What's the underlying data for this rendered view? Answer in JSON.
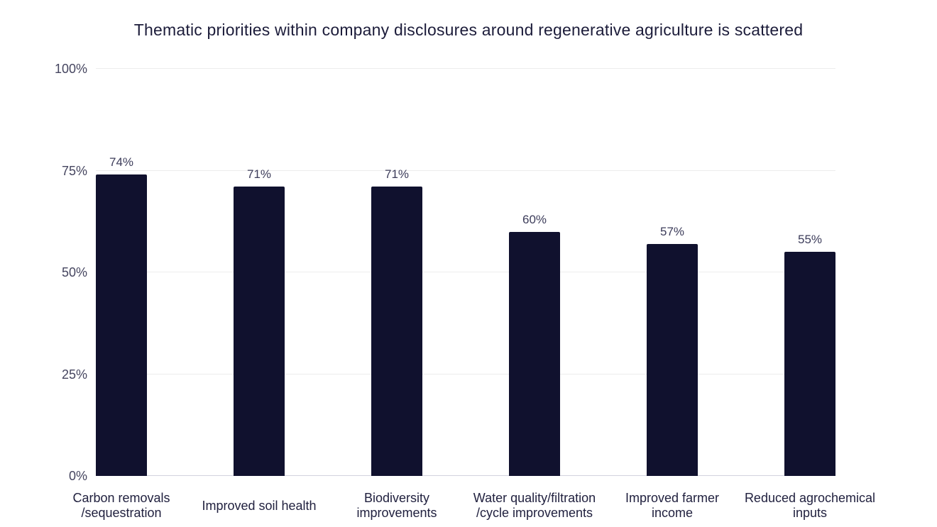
{
  "chart_data": {
    "type": "bar",
    "title": "Thematic priorities within company disclosures around regenerative agriculture is scattered",
    "categories": [
      "Carbon removals\n/sequestration",
      "Improved soil health",
      "Biodiversity\nimprovements",
      "Water quality/filtration\n/cycle improvements",
      "Improved farmer\nincome",
      "Reduced agrochemical\ninputs"
    ],
    "values": [
      74,
      71,
      71,
      60,
      57,
      55
    ],
    "value_labels": [
      "74%",
      "71%",
      "71%",
      "60%",
      "57%",
      "55%"
    ],
    "xlabel": "",
    "ylabel": "",
    "ylim": [
      0,
      100
    ],
    "y_tick_values": [
      0,
      25,
      50,
      75,
      100
    ],
    "y_ticks": [
      "0%",
      "25%",
      "50%",
      "75%",
      "100%"
    ],
    "grid": true,
    "legend_position": "none",
    "colors": {
      "bar": "#10112E",
      "background": "#FFFFFF",
      "gridline": "#EDEDED",
      "baseline": "#D3D3DE",
      "title_text": "#1C1C3A",
      "y_tick_text": "#45455F",
      "x_tick_text": "#21213F",
      "value_label_text": "#3C3C5A"
    }
  }
}
